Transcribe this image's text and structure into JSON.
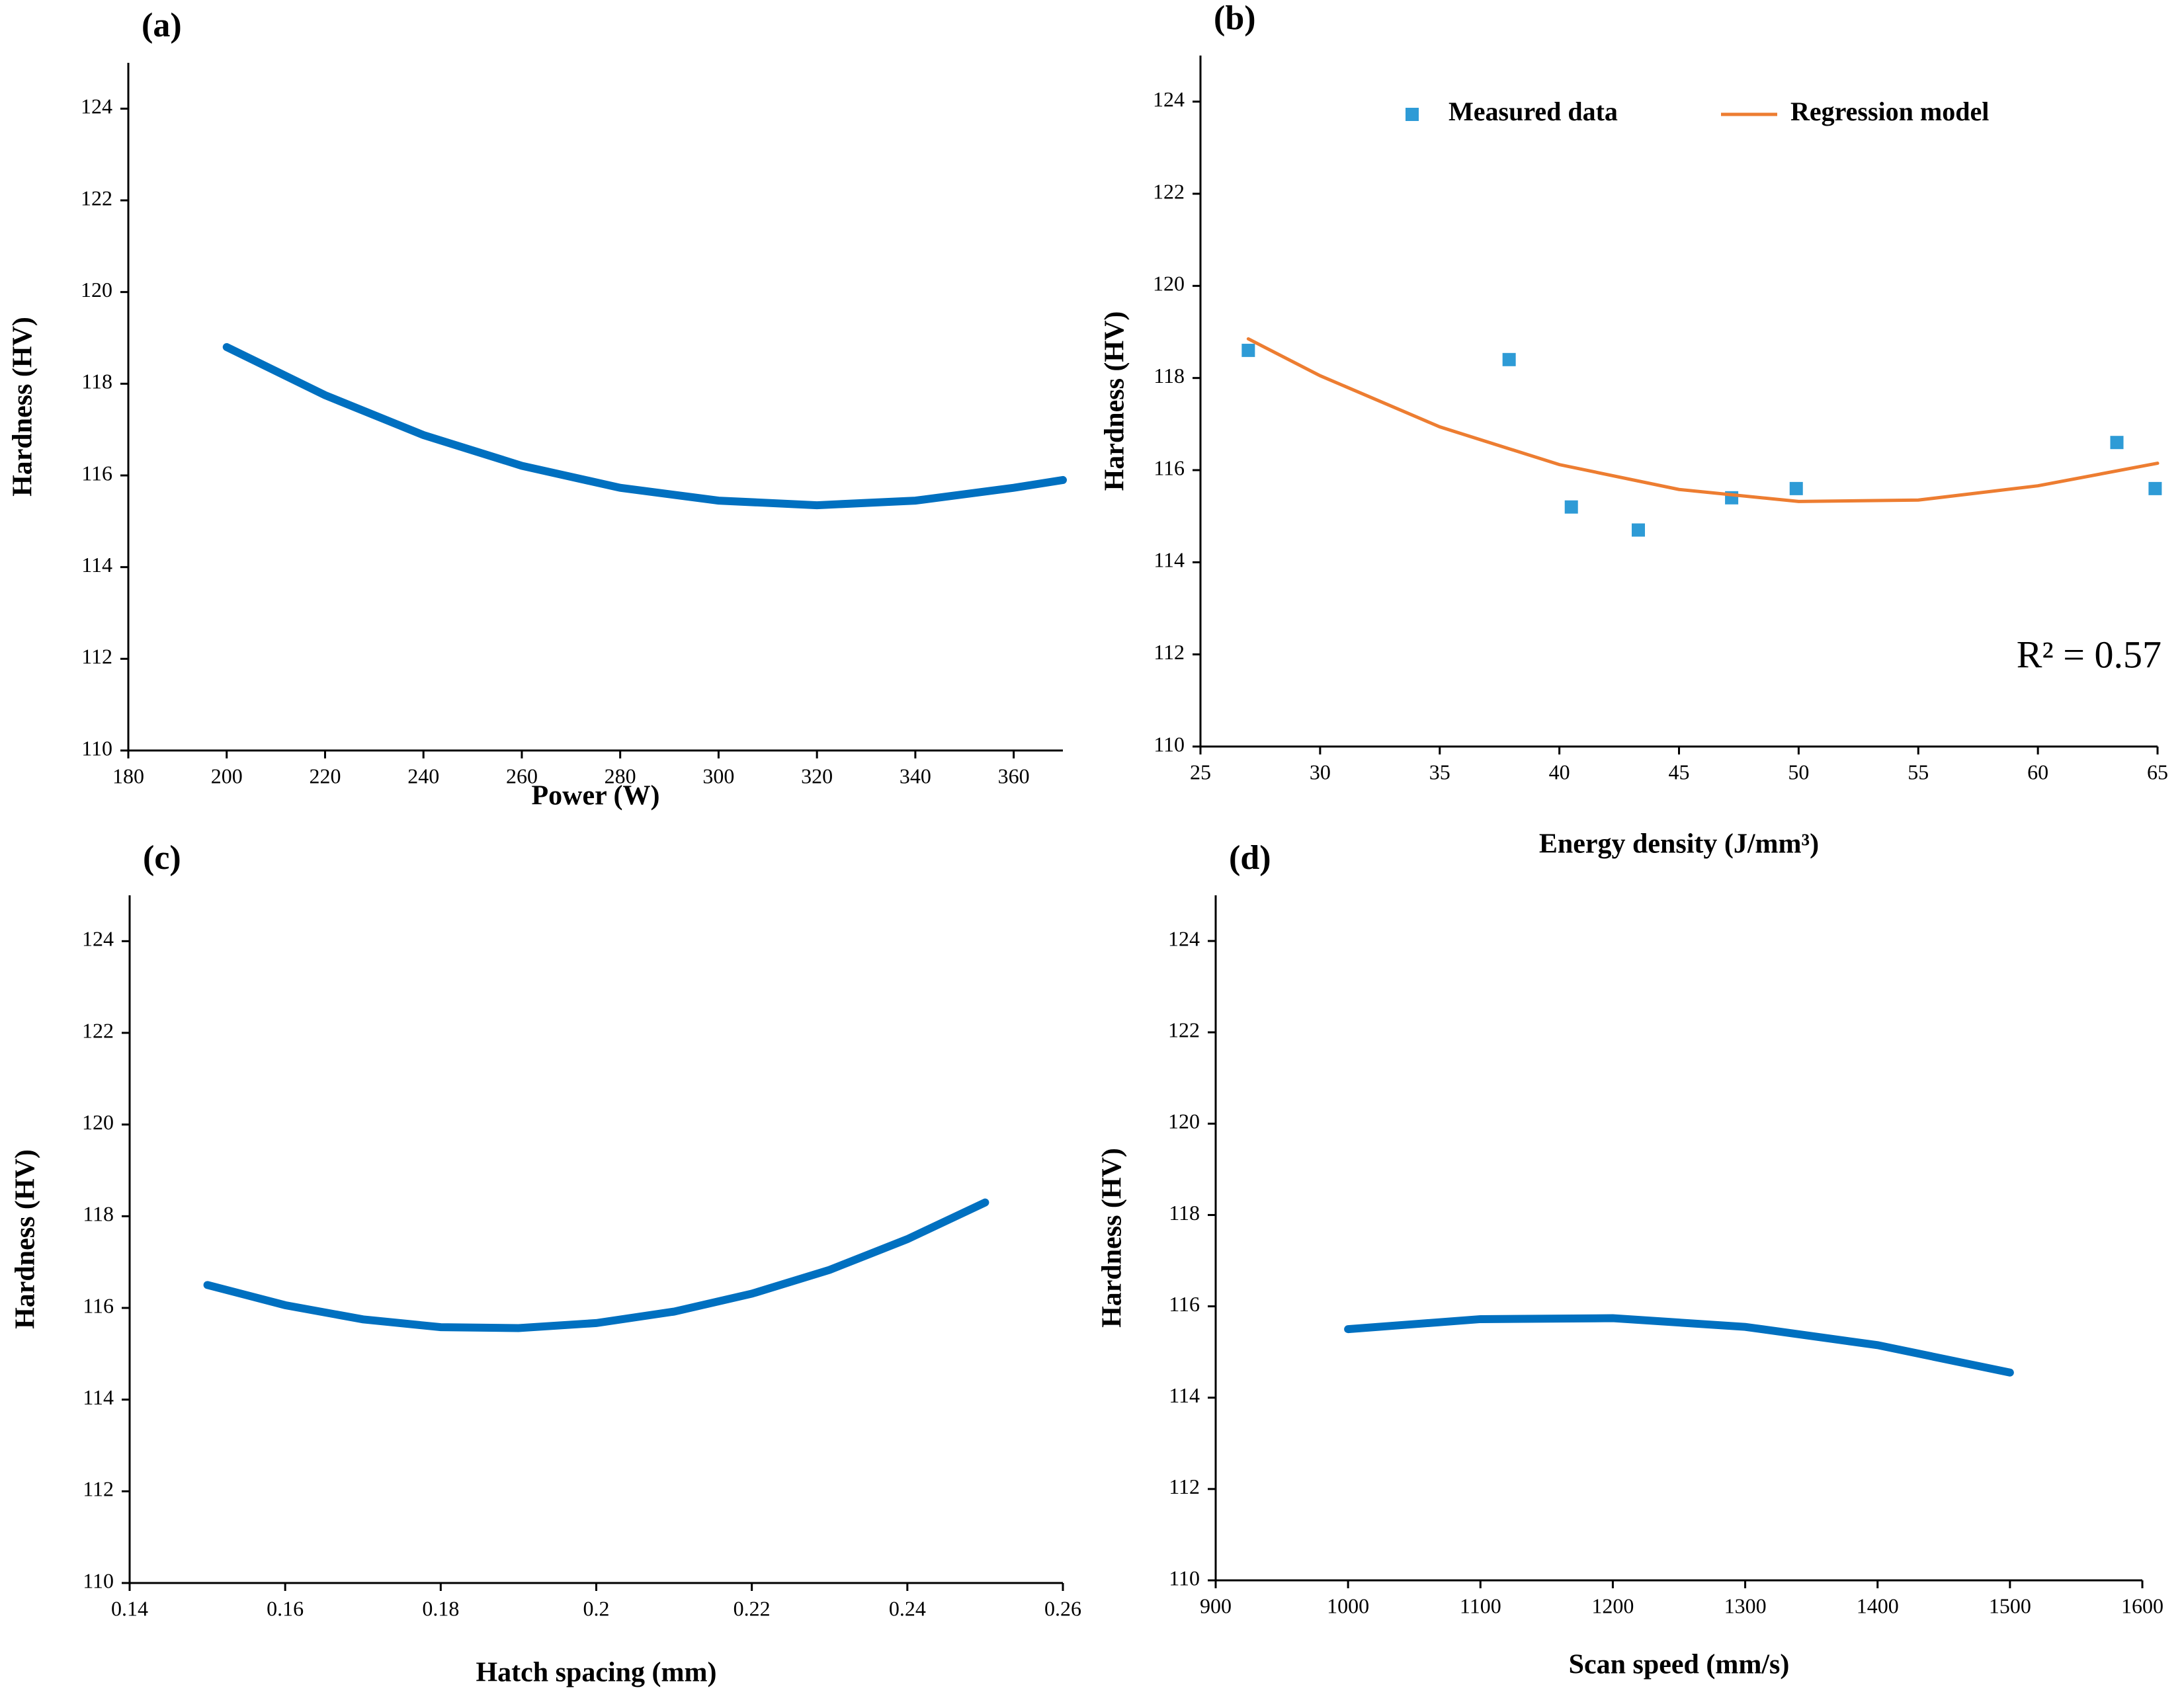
{
  "chart_data": [
    {
      "type": "line",
      "title": "(a)",
      "x_label": "Power (W)",
      "y_label": "Hardness (HV)",
      "series": [
        {
          "color": "#0070c0",
          "x": [
            200,
            220,
            240,
            260,
            280,
            300,
            320,
            340,
            360,
            370
          ],
          "values": [
            118.8,
            117.75,
            116.88,
            116.21,
            115.73,
            115.45,
            115.35,
            115.45,
            115.73,
            115.9
          ]
        }
      ],
      "xlim": [
        180,
        370
      ],
      "xticks": [
        180,
        200,
        220,
        240,
        260,
        280,
        300,
        320,
        340,
        360
      ],
      "ylim": [
        110,
        125
      ],
      "yticks": [
        110,
        112,
        114,
        116,
        118,
        120,
        122,
        124
      ],
      "grid": false
    },
    {
      "type": "scatter",
      "title": "(b)",
      "x_label": "Energy density (J/mm³)",
      "y_label": "Hardness (HV)",
      "annotation": "R² = 0.57",
      "legend": "top",
      "series": [
        {
          "name": "Measured data",
          "type": "scatter",
          "color": "#2e9bd6",
          "x": [
            27,
            37.9,
            40.5,
            43.3,
            47.2,
            49.9,
            63.3,
            64.9
          ],
          "values": [
            118.6,
            118.4,
            115.2,
            114.7,
            115.4,
            115.6,
            116.6,
            115.6
          ]
        },
        {
          "name": "Regression model",
          "type": "line",
          "color": "#ed7d31",
          "x": [
            27,
            30,
            35,
            40,
            45,
            50,
            55,
            60,
            65
          ],
          "values": [
            118.85,
            118.05,
            116.94,
            116.12,
            115.58,
            115.32,
            115.35,
            115.66,
            116.15
          ]
        }
      ],
      "xlim": [
        25,
        65
      ],
      "xticks": [
        25,
        30,
        35,
        40,
        45,
        50,
        55,
        60,
        65
      ],
      "ylim": [
        110,
        125
      ],
      "yticks": [
        110,
        112,
        114,
        116,
        118,
        120,
        122,
        124
      ],
      "grid": false
    },
    {
      "type": "line",
      "title": "(c)",
      "x_label": "Hatch spacing (mm)",
      "y_label": "Hardness (HV)",
      "series": [
        {
          "color": "#0070c0",
          "x": [
            0.15,
            0.16,
            0.17,
            0.18,
            0.19,
            0.2,
            0.21,
            0.22,
            0.23,
            0.24,
            0.25
          ],
          "values": [
            116.5,
            116.06,
            115.75,
            115.58,
            115.56,
            115.67,
            115.92,
            116.31,
            116.83,
            117.5,
            118.3
          ]
        }
      ],
      "xlim": [
        0.14,
        0.26
      ],
      "xticks": [
        0.14,
        0.16,
        0.18,
        0.2,
        0.22,
        0.24,
        0.26
      ],
      "ylim": [
        110,
        125
      ],
      "yticks": [
        110,
        112,
        114,
        116,
        118,
        120,
        122,
        124
      ],
      "grid": false
    },
    {
      "type": "line",
      "title": "(d)",
      "x_label": "Scan speed (mm/s)",
      "y_label": "Hardness (HV)",
      "series": [
        {
          "color": "#0070c0",
          "x": [
            1000,
            1100,
            1200,
            1300,
            1400,
            1500
          ],
          "values": [
            115.5,
            115.72,
            115.74,
            115.55,
            115.15,
            114.55
          ]
        }
      ],
      "xlim": [
        900,
        1600
      ],
      "xticks": [
        900,
        1000,
        1100,
        1200,
        1300,
        1400,
        1500,
        1600
      ],
      "ylim": [
        110,
        125
      ],
      "yticks": [
        110,
        112,
        114,
        116,
        118,
        120,
        122,
        124
      ],
      "grid": false
    }
  ]
}
